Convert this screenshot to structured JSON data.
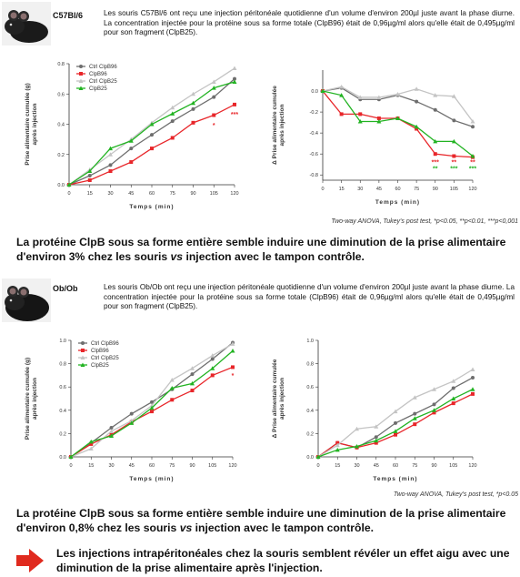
{
  "section1": {
    "strain": "C57Bl/6",
    "text": "Les souris C57Bl/6 ont reçu une injection péritonéale quotidienne d'un volume d'environ 200µl juste avant la phase diurne. La concentration injectée pour la protéine sous sa forme totale (ClpB96) était de 0,96µg/ml alors qu'elle était de 0,495µg/ml pour son fragment (ClpB25).",
    "footnote": "Two-way ANOVA, Tukey's post test, *p<0.05, **p<0.01, ***p<0,001",
    "conclusion": [
      "La protéine ClpB sous sa forme entière semble induire une diminution de la prise alimentaire d'environ 3% chez les souris ",
      "vs",
      " injection avec le tampon contrôle."
    ]
  },
  "section2": {
    "strain": "Ob/Ob",
    "text": "Les souris Ob/Ob ont reçu une injection péritonéale quotidienne d'un volume d'environ 200µl juste avant la phase diurne. La concentration injectée pour la protéine sous sa forme totale (ClpB96) était de 0,96µg/ml alors qu'elle était de 0,495µg/ml pour son fragment (ClpB25).",
    "footnote": "Two-way ANOVA, Tukey's post test, *p<0.05",
    "conclusion": [
      "La protéine ClpB sous sa forme entière semble induire une diminution de la prise alimentaire d'environ 0,8% chez les souris ",
      "vs",
      " injection avec le tampon contrôle."
    ]
  },
  "final": "Les injections intrapéritonéales chez la souris semblent révéler un effet aigu avec une diminution de la prise alimentaire après l'injection.",
  "chart_data": [
    {
      "type": "line",
      "ylabel": [
        "Prise alimentaire cumulée (g)",
        "après injection"
      ],
      "xlabel": "Temps (min)",
      "x": [
        0,
        15,
        30,
        45,
        60,
        75,
        90,
        105,
        120
      ],
      "xlim": [
        0,
        120
      ],
      "xticks": [
        0,
        15,
        30,
        45,
        60,
        75,
        90,
        105,
        120
      ],
      "ylim": [
        0,
        0.8
      ],
      "yticks": [
        {
          "value": 0,
          "label": "0.0"
        },
        {
          "value": 0.2,
          "label": "0.2"
        },
        {
          "value": 0.4,
          "label": "0.4"
        },
        {
          "value": 0.6,
          "label": "0.6"
        },
        {
          "value": 0.8,
          "label": "0.8"
        }
      ],
      "legend": "upper left",
      "series": [
        {
          "name": "Ctrl ClpB96",
          "color": "#6e6e6e",
          "marker": "circle",
          "values": [
            0,
            0.06,
            0.13,
            0.24,
            0.33,
            0.42,
            0.5,
            0.58,
            0.7
          ]
        },
        {
          "name": "ClpB96",
          "color": "#e8262a",
          "marker": "square",
          "values": [
            0,
            0.03,
            0.09,
            0.15,
            0.24,
            0.31,
            0.41,
            0.46,
            0.53
          ]
        },
        {
          "name": "Ctrl ClpB25",
          "color": "#c4c4c4",
          "marker": "triangle",
          "values": [
            0,
            0.1,
            0.2,
            0.3,
            0.41,
            0.51,
            0.6,
            0.68,
            0.77
          ]
        },
        {
          "name": "ClpB25",
          "color": "#22b322",
          "marker": "triangle",
          "values": [
            0,
            0.09,
            0.24,
            0.29,
            0.4,
            0.47,
            0.54,
            0.64,
            0.68
          ]
        }
      ],
      "annotations": [
        {
          "x": 105,
          "y": 0.38,
          "text": "*",
          "color": "#e8262a"
        },
        {
          "x": 120,
          "y": 0.45,
          "text": "***",
          "color": "#e8262a"
        }
      ]
    },
    {
      "type": "line",
      "ylabel": [
        "Δ Prise alimentaire cumulée",
        "après injection"
      ],
      "xlabel": "Temps (min)",
      "x": [
        0,
        15,
        30,
        45,
        60,
        75,
        90,
        105,
        120
      ],
      "xlim": [
        0,
        120
      ],
      "xticks": [
        0,
        15,
        30,
        45,
        60,
        75,
        90,
        105,
        120
      ],
      "ylim": [
        -0.85,
        0.2
      ],
      "yticks": [
        {
          "value": 0,
          "label": "0.0"
        },
        {
          "value": -0.2,
          "label": "-0.2"
        },
        {
          "value": -0.4,
          "label": "-0.4"
        },
        {
          "value": -0.6,
          "label": "-0.6"
        },
        {
          "value": -0.8,
          "label": "-0.8"
        }
      ],
      "series": [
        {
          "name": "Ctrl ClpB96",
          "color": "#6e6e6e",
          "marker": "circle",
          "values": [
            0,
            0.03,
            -0.08,
            -0.08,
            -0.04,
            -0.1,
            -0.18,
            -0.28,
            -0.34
          ]
        },
        {
          "name": "ClpB96",
          "color": "#e8262a",
          "marker": "square",
          "values": [
            0,
            -0.22,
            -0.22,
            -0.26,
            -0.26,
            -0.36,
            -0.6,
            -0.62,
            -0.63
          ]
        },
        {
          "name": "Ctrl ClpB25",
          "color": "#c4c4c4",
          "marker": "triangle",
          "values": [
            0,
            0.04,
            -0.06,
            -0.06,
            -0.03,
            0.02,
            -0.04,
            -0.05,
            -0.29
          ]
        },
        {
          "name": "ClpB25",
          "color": "#22b322",
          "marker": "triangle",
          "values": [
            0,
            -0.04,
            -0.29,
            -0.29,
            -0.26,
            -0.34,
            -0.48,
            -0.48,
            -0.62
          ]
        }
      ],
      "annotations": [
        {
          "x": 90,
          "y": -0.7,
          "text": "***",
          "color": "#e8262a"
        },
        {
          "x": 90,
          "y": -0.76,
          "text": "**",
          "color": "#22b322"
        },
        {
          "x": 105,
          "y": -0.7,
          "text": "**",
          "color": "#e8262a"
        },
        {
          "x": 105,
          "y": -0.76,
          "text": "***",
          "color": "#22b322"
        },
        {
          "x": 120,
          "y": -0.7,
          "text": "**",
          "color": "#e8262a"
        },
        {
          "x": 120,
          "y": -0.76,
          "text": "***",
          "color": "#22b322"
        }
      ]
    },
    {
      "type": "line",
      "ylabel": [
        "Prise alimentaire cumulée (g)",
        "après injection"
      ],
      "xlabel": "Temps (min)",
      "x": [
        0,
        15,
        30,
        45,
        60,
        75,
        90,
        105,
        120
      ],
      "xlim": [
        0,
        120
      ],
      "xticks": [
        0,
        15,
        30,
        45,
        60,
        75,
        90,
        105,
        120
      ],
      "ylim": [
        0,
        1
      ],
      "yticks": [
        {
          "value": 0,
          "label": "0.0"
        },
        {
          "value": 0.2,
          "label": "0.2"
        },
        {
          "value": 0.4,
          "label": "0.4"
        },
        {
          "value": 0.6,
          "label": "0.6"
        },
        {
          "value": 0.8,
          "label": "0.8"
        },
        {
          "value": 1,
          "label": "1.0"
        }
      ],
      "legend": "upper left",
      "series": [
        {
          "name": "Ctrl ClpB96",
          "color": "#6e6e6e",
          "marker": "circle",
          "values": [
            0,
            0.12,
            0.25,
            0.37,
            0.47,
            0.58,
            0.71,
            0.84,
            0.98
          ]
        },
        {
          "name": "ClpB96",
          "color": "#e8262a",
          "marker": "square",
          "values": [
            0,
            0.11,
            0.19,
            0.3,
            0.39,
            0.49,
            0.57,
            0.7,
            0.77
          ]
        },
        {
          "name": "Ctrl ClpB25",
          "color": "#c4c4c4",
          "marker": "triangle",
          "values": [
            0,
            0.07,
            0.22,
            0.31,
            0.44,
            0.66,
            0.76,
            0.87,
            0.97
          ]
        },
        {
          "name": "ClpB25",
          "color": "#22b322",
          "marker": "triangle",
          "values": [
            0,
            0.13,
            0.18,
            0.29,
            0.42,
            0.59,
            0.63,
            0.76,
            0.91
          ]
        }
      ],
      "annotations": [
        {
          "x": 120,
          "y": 0.68,
          "text": "*",
          "color": "#e8262a"
        }
      ]
    },
    {
      "type": "line",
      "ylabel": [
        "Δ Prise alimentaire cumulée",
        "après injection"
      ],
      "xlabel": "Temps (min)",
      "x": [
        0,
        15,
        30,
        45,
        60,
        75,
        90,
        105,
        120
      ],
      "xlim": [
        0,
        120
      ],
      "xticks": [
        0,
        15,
        30,
        45,
        60,
        75,
        90,
        105,
        120
      ],
      "ylim": [
        0,
        1
      ],
      "yticks": [
        {
          "value": 0,
          "label": "0.0"
        },
        {
          "value": 0.2,
          "label": "0.2"
        },
        {
          "value": 0.4,
          "label": "0.4"
        },
        {
          "value": 0.6,
          "label": "0.6"
        },
        {
          "value": 0.8,
          "label": "0.8"
        },
        {
          "value": 1,
          "label": "1.0"
        }
      ],
      "series": [
        {
          "name": "Ctrl ClpB96",
          "color": "#6e6e6e",
          "marker": "circle",
          "values": [
            0,
            0.12,
            0.08,
            0.17,
            0.29,
            0.37,
            0.45,
            0.59,
            0.68
          ]
        },
        {
          "name": "ClpB96",
          "color": "#e8262a",
          "marker": "square",
          "values": [
            0,
            0.12,
            0.08,
            0.12,
            0.19,
            0.28,
            0.38,
            0.46,
            0.54
          ]
        },
        {
          "name": "Ctrl ClpB25",
          "color": "#c4c4c4",
          "marker": "triangle",
          "values": [
            0,
            0.1,
            0.24,
            0.26,
            0.39,
            0.51,
            0.58,
            0.65,
            0.75
          ]
        },
        {
          "name": "ClpB25",
          "color": "#22b322",
          "marker": "triangle",
          "values": [
            0,
            0.06,
            0.09,
            0.14,
            0.22,
            0.33,
            0.4,
            0.5,
            0.58
          ]
        }
      ]
    }
  ]
}
